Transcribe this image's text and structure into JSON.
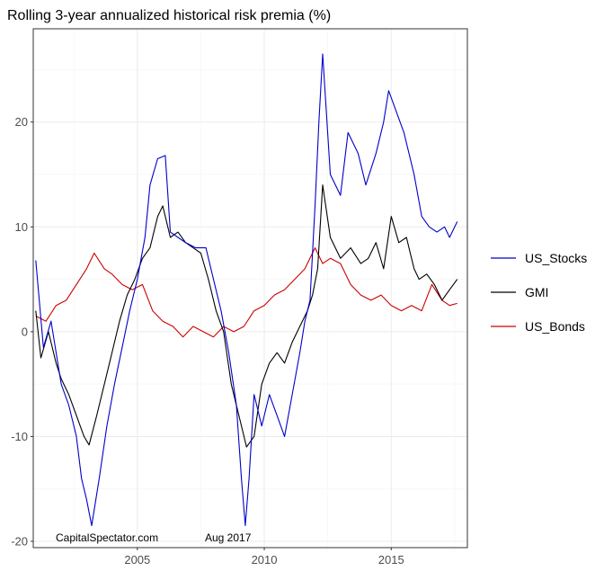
{
  "chart_data": {
    "type": "line",
    "title": "Rolling 3-year annualized historical risk premia (%)",
    "xlabel": "",
    "ylabel": "",
    "x_range": [
      2000.9,
      2018.0
    ],
    "ylim": [
      -20.6,
      28.9
    ],
    "x_ticks": [
      2005,
      2010,
      2015
    ],
    "y_ticks": [
      -20,
      -10,
      0,
      10,
      20
    ],
    "grid": true,
    "legend_position": "right",
    "annotations": [
      "CapitalSpectator.com",
      "Aug 2017"
    ],
    "colors": {
      "US_Stocks": "#0000cc",
      "GMI": "#000000",
      "US_Bonds": "#cc0000"
    },
    "series": [
      {
        "name": "US_Stocks",
        "x": [
          2001.0,
          2001.3,
          2001.6,
          2002.0,
          2002.3,
          2002.6,
          2002.8,
          2003.0,
          2003.2,
          2003.5,
          2003.8,
          2004.1,
          2004.4,
          2004.7,
          2005.0,
          2005.3,
          2005.5,
          2005.8,
          2006.1,
          2006.3,
          2006.6,
          2006.9,
          2007.3,
          2007.7,
          2008.0,
          2008.3,
          2008.6,
          2008.9,
          2009.1,
          2009.25,
          2009.4,
          2009.6,
          2009.9,
          2010.2,
          2010.5,
          2010.8,
          2011.1,
          2011.4,
          2011.6,
          2011.8,
          2012.0,
          2012.15,
          2012.3,
          2012.6,
          2013.0,
          2013.3,
          2013.7,
          2014.0,
          2014.4,
          2014.7,
          2014.9,
          2015.2,
          2015.5,
          2015.9,
          2016.2,
          2016.5,
          2016.8,
          2017.1,
          2017.3,
          2017.6
        ],
        "values": [
          6.8,
          -1.5,
          1.0,
          -5.0,
          -7.0,
          -10.0,
          -14.0,
          -16.0,
          -18.5,
          -14.0,
          -9.0,
          -5.0,
          -1.5,
          2.0,
          5.0,
          9.0,
          14.0,
          16.5,
          16.8,
          9.5,
          9.0,
          8.5,
          8.0,
          8.0,
          5.0,
          2.0,
          -2.0,
          -7.0,
          -14.0,
          -18.5,
          -14.0,
          -6.0,
          -9.0,
          -6.0,
          -8.0,
          -10.0,
          -6.0,
          -2.0,
          1.0,
          3.0,
          12.0,
          20.0,
          26.5,
          15.0,
          13.0,
          19.0,
          17.0,
          14.0,
          17.0,
          20.0,
          23.0,
          21.0,
          19.0,
          15.0,
          11.0,
          10.0,
          9.5,
          10.0,
          9.0,
          10.5
        ]
      },
      {
        "name": "GMI",
        "x": [
          2001.0,
          2001.2,
          2001.5,
          2001.8,
          2002.0,
          2002.3,
          2002.6,
          2002.9,
          2003.1,
          2003.4,
          2003.7,
          2004.0,
          2004.3,
          2004.6,
          2004.9,
          2005.2,
          2005.5,
          2005.8,
          2006.0,
          2006.3,
          2006.6,
          2006.9,
          2007.2,
          2007.5,
          2007.8,
          2008.1,
          2008.4,
          2008.7,
          2009.0,
          2009.3,
          2009.6,
          2009.9,
          2010.2,
          2010.5,
          2010.8,
          2011.1,
          2011.4,
          2011.7,
          2011.9,
          2012.1,
          2012.3,
          2012.6,
          2013.0,
          2013.4,
          2013.8,
          2014.1,
          2014.4,
          2014.7,
          2015.0,
          2015.3,
          2015.6,
          2015.9,
          2016.1,
          2016.4,
          2016.7,
          2017.0,
          2017.3,
          2017.6
        ],
        "values": [
          2.0,
          -2.5,
          0.0,
          -3.0,
          -4.5,
          -6.0,
          -8.0,
          -10.0,
          -10.8,
          -8.0,
          -5.0,
          -2.0,
          1.0,
          3.5,
          5.0,
          7.0,
          8.0,
          11.0,
          12.0,
          9.0,
          9.5,
          8.5,
          8.0,
          7.5,
          5.0,
          2.0,
          0.0,
          -5.0,
          -8.0,
          -11.0,
          -10.0,
          -5.0,
          -3.0,
          -2.0,
          -3.0,
          -1.0,
          0.5,
          2.0,
          3.5,
          6.0,
          14.0,
          9.0,
          7.0,
          8.0,
          6.5,
          7.0,
          8.5,
          6.0,
          11.0,
          8.5,
          9.0,
          6.0,
          5.0,
          5.5,
          4.5,
          3.0,
          4.0,
          5.0
        ]
      },
      {
        "name": "US_Bonds",
        "x": [
          2001.0,
          2001.4,
          2001.8,
          2002.2,
          2002.6,
          2003.0,
          2003.3,
          2003.7,
          2004.0,
          2004.4,
          2004.8,
          2005.2,
          2005.6,
          2006.0,
          2006.4,
          2006.8,
          2007.2,
          2007.6,
          2008.0,
          2008.4,
          2008.8,
          2009.2,
          2009.6,
          2010.0,
          2010.4,
          2010.8,
          2011.2,
          2011.6,
          2012.0,
          2012.3,
          2012.6,
          2013.0,
          2013.4,
          2013.8,
          2014.2,
          2014.6,
          2015.0,
          2015.4,
          2015.8,
          2016.2,
          2016.6,
          2017.0,
          2017.3,
          2017.6
        ],
        "values": [
          1.5,
          1.0,
          2.5,
          3.0,
          4.5,
          6.0,
          7.5,
          6.0,
          5.5,
          4.5,
          4.0,
          4.5,
          2.0,
          1.0,
          0.5,
          -0.5,
          0.5,
          0.0,
          -0.5,
          0.5,
          0.0,
          0.5,
          2.0,
          2.5,
          3.5,
          4.0,
          5.0,
          6.0,
          8.0,
          6.5,
          7.0,
          6.5,
          4.5,
          3.5,
          3.0,
          3.5,
          2.5,
          2.0,
          2.5,
          2.0,
          4.5,
          3.0,
          2.5,
          2.7
        ]
      }
    ]
  }
}
